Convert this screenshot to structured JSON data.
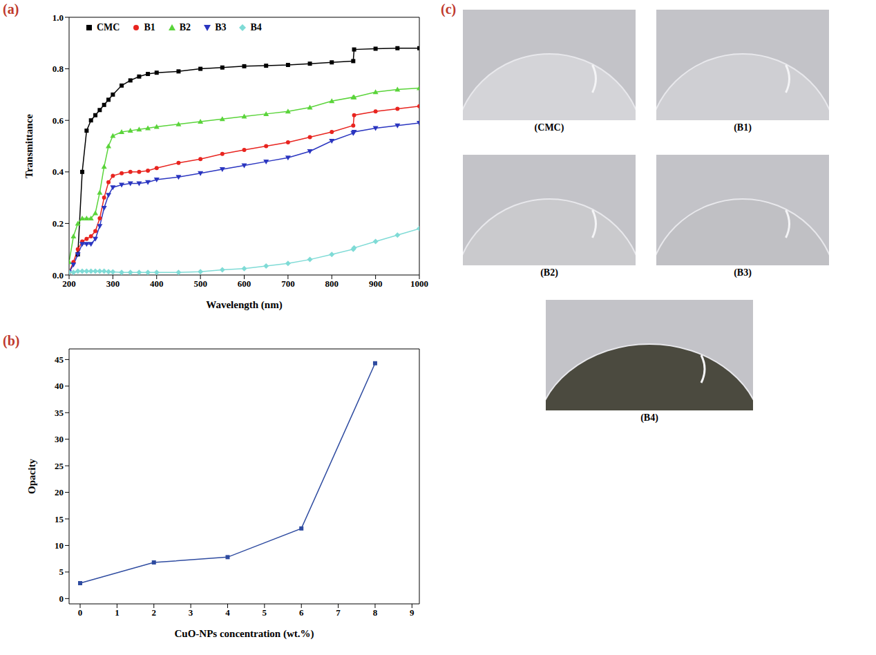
{
  "chart_data": [
    {
      "panel": "(a)",
      "type": "line",
      "x_label": "Wavelength (nm)",
      "y_label": "Transmittance",
      "x": [
        200,
        210,
        220,
        230,
        240,
        250,
        260,
        270,
        280,
        290,
        300,
        320,
        340,
        360,
        380,
        400,
        450,
        500,
        550,
        600,
        650,
        700,
        750,
        800,
        849,
        851,
        900,
        950,
        1000
      ],
      "series": [
        {
          "name": "CMC",
          "color": "#000000",
          "marker": "square",
          "values": [
            null,
            null,
            0.08,
            0.4,
            0.56,
            0.6,
            0.62,
            0.64,
            0.66,
            0.68,
            0.7,
            0.735,
            0.755,
            0.77,
            0.78,
            0.785,
            0.79,
            0.8,
            0.805,
            0.81,
            0.812,
            0.815,
            0.82,
            0.825,
            0.83,
            0.875,
            0.878,
            0.88,
            0.88
          ]
        },
        {
          "name": "B1",
          "color": "#e8241f",
          "marker": "circle",
          "values": [
            0.01,
            0.05,
            0.1,
            0.13,
            0.14,
            0.15,
            0.17,
            0.22,
            0.3,
            0.36,
            0.385,
            0.395,
            0.4,
            0.4,
            0.405,
            0.415,
            0.435,
            0.45,
            0.47,
            0.485,
            0.5,
            0.515,
            0.535,
            0.555,
            0.58,
            0.62,
            0.635,
            0.645,
            0.655
          ]
        },
        {
          "name": "B2",
          "color": "#5ad43a",
          "marker": "triangle",
          "values": [
            0.05,
            0.15,
            0.2,
            0.22,
            0.22,
            0.22,
            0.24,
            0.32,
            0.42,
            0.5,
            0.54,
            0.555,
            0.56,
            0.565,
            0.57,
            0.575,
            0.585,
            0.595,
            0.605,
            0.615,
            0.625,
            0.635,
            0.65,
            0.675,
            0.69,
            0.69,
            0.71,
            0.72,
            0.725
          ]
        },
        {
          "name": "B3",
          "color": "#2a35c0",
          "marker": "triangle_down",
          "values": [
            0.01,
            0.04,
            0.08,
            0.12,
            0.12,
            0.12,
            0.14,
            0.19,
            0.26,
            0.31,
            0.34,
            0.35,
            0.355,
            0.355,
            0.36,
            0.37,
            0.38,
            0.395,
            0.41,
            0.425,
            0.44,
            0.455,
            0.48,
            0.52,
            0.55,
            0.555,
            0.57,
            0.58,
            0.59
          ]
        },
        {
          "name": "B4",
          "color": "#7fdbd6",
          "marker": "diamond",
          "values": [
            0.01,
            0.01,
            0.015,
            0.015,
            0.015,
            0.015,
            0.015,
            0.015,
            0.015,
            0.013,
            0.012,
            0.01,
            0.01,
            0.01,
            0.01,
            0.01,
            0.01,
            0.013,
            0.02,
            0.025,
            0.035,
            0.045,
            0.06,
            0.08,
            0.1,
            0.105,
            0.13,
            0.155,
            0.18
          ]
        }
      ],
      "xlim": [
        200,
        1000
      ],
      "ylim": [
        0,
        1
      ],
      "xticks": [
        200,
        300,
        400,
        500,
        600,
        700,
        800,
        900,
        1000
      ],
      "yticks": [
        {
          "value": 0,
          "label": "0.0"
        },
        0.2,
        0.4,
        0.6,
        0.8,
        {
          "value": 1,
          "label": "1.0"
        }
      ],
      "legend": "upper left",
      "grid": false
    },
    {
      "panel": "(b)",
      "type": "line",
      "x_label": "CuO-NPs concentration (wt.%)",
      "y_label": "Opacity",
      "x": [
        0,
        2,
        4,
        6,
        8
      ],
      "values": [
        2.9,
        6.8,
        7.8,
        13.2,
        44.3
      ],
      "color": "#2e4ba0",
      "marker": "square",
      "xlim": [
        -0.3,
        9.2
      ],
      "ylim": [
        -1,
        47
      ],
      "xticks": [
        0,
        1,
        2,
        3,
        4,
        5,
        6,
        7,
        8,
        9
      ],
      "yticks": [
        0,
        5,
        10,
        15,
        20,
        25,
        30,
        35,
        40,
        45
      ],
      "grid": false
    }
  ],
  "photos": {
    "panel": "(c)",
    "labels": [
      "(CMC)",
      "(B1)",
      "(B2)",
      "(B3)",
      "(B4)"
    ]
  }
}
